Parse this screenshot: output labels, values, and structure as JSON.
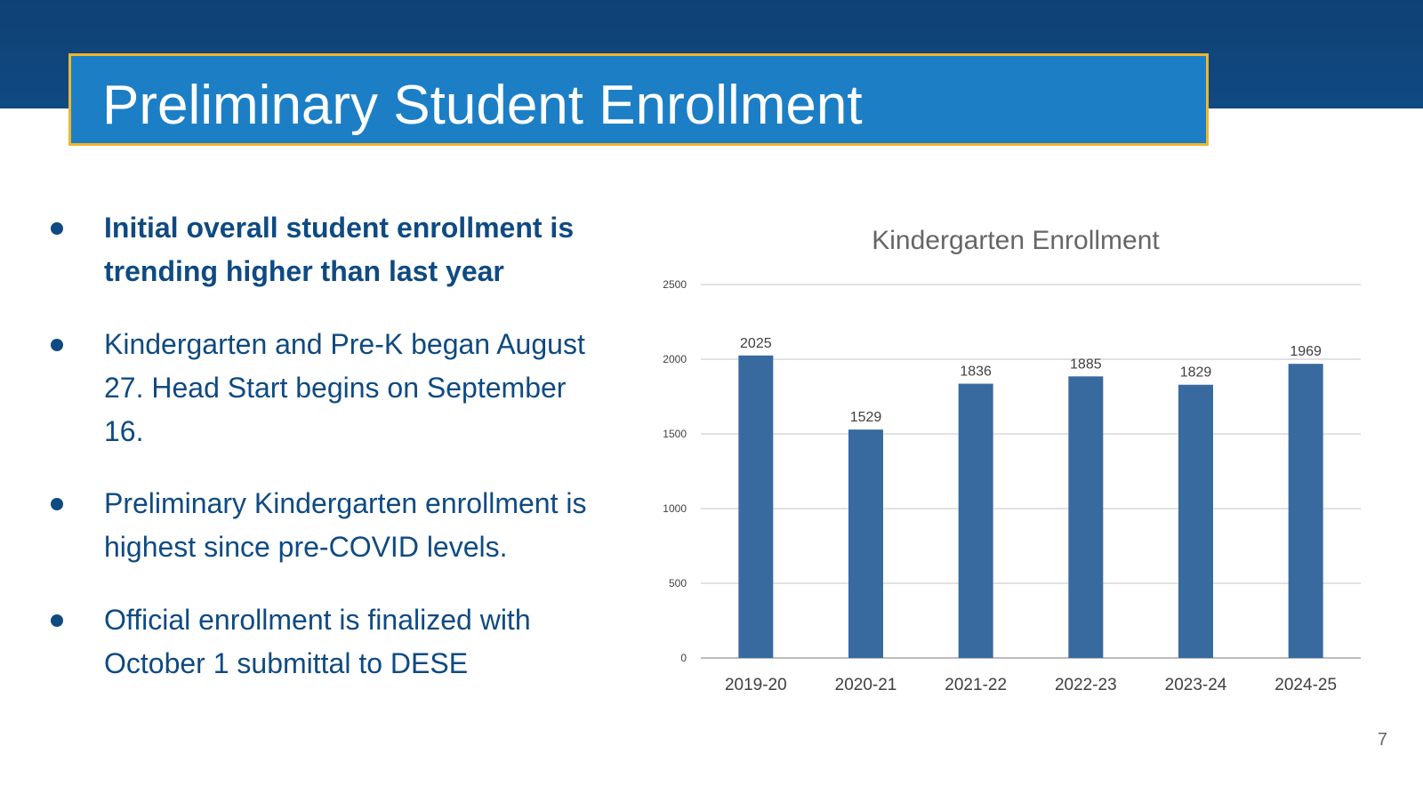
{
  "slide": {
    "title": "Preliminary Student Enrollment",
    "page_number": "7"
  },
  "bullets": [
    "Initial overall student enrollment is trending higher than last year",
    "Kindergarten and Pre-K began August 27.  Head Start begins on September 16.",
    "Preliminary Kindergarten enrollment is highest since pre-COVID levels.",
    "Official enrollment is finalized with October 1 submittal to DESE"
  ],
  "colors": {
    "header": "#0f4a82",
    "title_box": "#1c7fc6",
    "accent_border": "#f1b52c",
    "bar": "#386aa0",
    "text_blue": "#0f4a82"
  },
  "chart_data": {
    "type": "bar",
    "title": "Kindergarten Enrollment",
    "categories": [
      "2019-20",
      "2020-21",
      "2021-22",
      "2022-23",
      "2023-24",
      "2024-25"
    ],
    "values": [
      2025,
      1529,
      1836,
      1885,
      1829,
      1969
    ],
    "ylim": [
      0,
      2500
    ],
    "y_ticks": [
      0,
      500,
      1000,
      1500,
      2000,
      2500
    ],
    "grid": true,
    "xlabel": "",
    "ylabel": ""
  }
}
